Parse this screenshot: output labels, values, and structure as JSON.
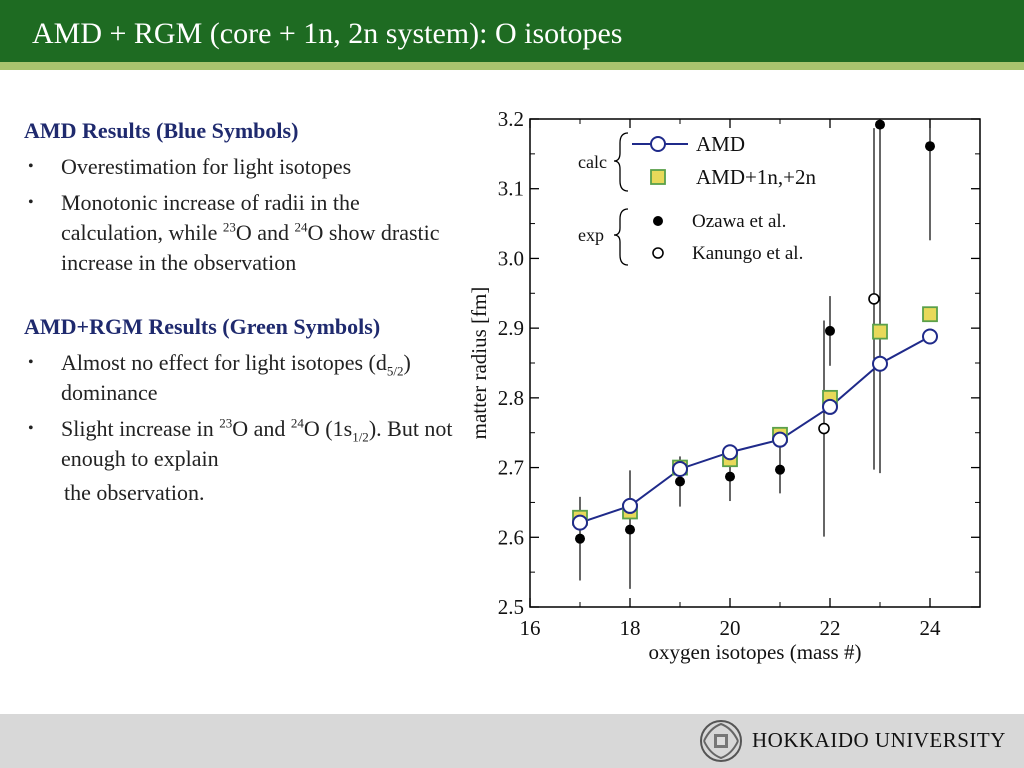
{
  "header": {
    "title": "AMD + RGM (core + 1n, 2n system): O isotopes"
  },
  "left": {
    "sec1_title": "AMD Results (Blue Symbols)",
    "sec1_b1": "Overestimation for light isotopes",
    "sec1_b2_a": "Monotonic increase of radii in the calculation, while ",
    "sec1_b2_sup1": "23",
    "sec1_b2_b": "O and ",
    "sec1_b2_sup2": "24",
    "sec1_b2_c": "O show drastic increase in the observation",
    "sec2_title": "AMD+RGM Results (Green Symbols)",
    "sec2_b1_a": "Almost no effect for light isotopes (d",
    "sec2_b1_sub": "5/2",
    "sec2_b1_b": ") dominance",
    "sec2_b2_a": "Slight increase in ",
    "sec2_b2_sup1": "23",
    "sec2_b2_b": "O and ",
    "sec2_b2_sup2": "24",
    "sec2_b2_c": "O (1s",
    "sec2_b2_sub": "1/2",
    "sec2_b2_d": "). But not enough to explain",
    "sec2_b2_e": "the observation.",
    "bullet_char": "•"
  },
  "chart_data": {
    "type": "scatter",
    "xlabel": "oxygen isotopes (mass #)",
    "ylabel": "matter radius [fm]",
    "xlim": [
      16,
      25
    ],
    "ylim": [
      2.5,
      3.2
    ],
    "xticks": [
      16,
      18,
      20,
      22,
      24
    ],
    "yticks": [
      2.5,
      2.6,
      2.7,
      2.8,
      2.9,
      3.0,
      3.1,
      3.2
    ],
    "legend_group_calc": "calc",
    "legend_group_exp": "exp",
    "series": [
      {
        "name": "AMD",
        "style": "line-open-circle",
        "color": "#1f2a8a",
        "x": [
          17,
          18,
          19,
          20,
          21,
          22,
          23,
          24
        ],
        "y": [
          2.621,
          2.645,
          2.698,
          2.722,
          2.74,
          2.787,
          2.849,
          2.888
        ]
      },
      {
        "name": "AMD+1n,+2n",
        "style": "square",
        "color": "#e8d95a",
        "x": [
          17,
          18,
          19,
          20,
          21,
          22,
          23,
          24
        ],
        "y": [
          2.628,
          2.637,
          2.7,
          2.712,
          2.747,
          2.8,
          2.895,
          2.92
        ]
      },
      {
        "name": "Ozawa et al.",
        "style": "filled-circle",
        "color": "#000000",
        "x": [
          17,
          18,
          19,
          20,
          21,
          22,
          23,
          24
        ],
        "y": [
          2.598,
          2.611,
          2.68,
          2.687,
          2.697,
          2.896,
          3.192,
          3.161
        ],
        "err": [
          0.06,
          0.085,
          0.036,
          0.035,
          0.034,
          0.05,
          0.5,
          0.135
        ]
      },
      {
        "name": "Kanungo et al.",
        "style": "open-circle",
        "color": "#000000",
        "x": [
          22,
          23
        ],
        "y": [
          2.756,
          2.942
        ],
        "err": [
          0.155,
          0.245
        ]
      }
    ]
  },
  "footer": {
    "university": "HOKKAIDO UNIVERSITY"
  }
}
